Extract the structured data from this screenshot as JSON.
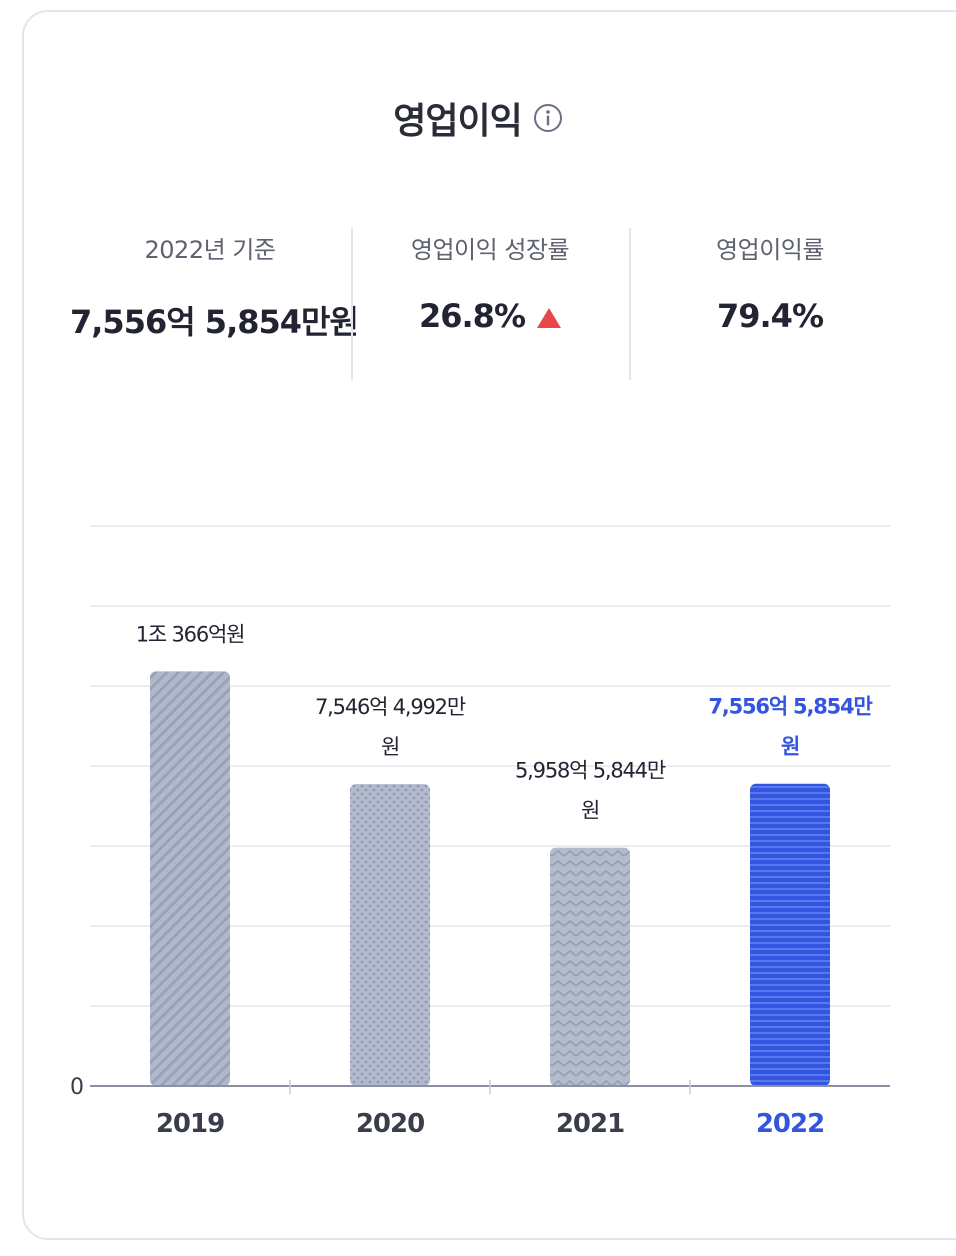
{
  "title": "영업이익",
  "stats": [
    {
      "label": "2022년 기준",
      "value": "7,556억 5,854만원"
    },
    {
      "label": "영업이익 성장률",
      "value": "26.8%",
      "trend": "up"
    },
    {
      "label": "영업이익률",
      "value": "79.4%"
    }
  ],
  "colors": {
    "highlight": "#3355e0",
    "bar_gray": "#b1b8cb",
    "bar_gray_dark": "#9aa2b8",
    "bar_blue": "#3355e0",
    "bar_blue_light": "#5878ee",
    "trend_up": "#e9464b",
    "grid": "#e6e7eb",
    "axis": "#8c90a4"
  },
  "chart_data": {
    "type": "bar",
    "categories": [
      "2019",
      "2020",
      "2021",
      "2022"
    ],
    "values": [
      10366,
      7546.4992,
      5958.5844,
      7556.5854
    ],
    "value_labels": [
      "1조 366억원",
      "7,546억 4,992만\n원",
      "5,958억 5,844만\n원",
      "7,556억 5,854만\n원"
    ],
    "unit": "억원",
    "ylim": [
      0,
      14000
    ],
    "y_tick_labels": [
      "0"
    ],
    "grid": true,
    "highlight_index": 3,
    "patterns": [
      "diagonal",
      "dots",
      "zigzag",
      "horizontal"
    ]
  }
}
